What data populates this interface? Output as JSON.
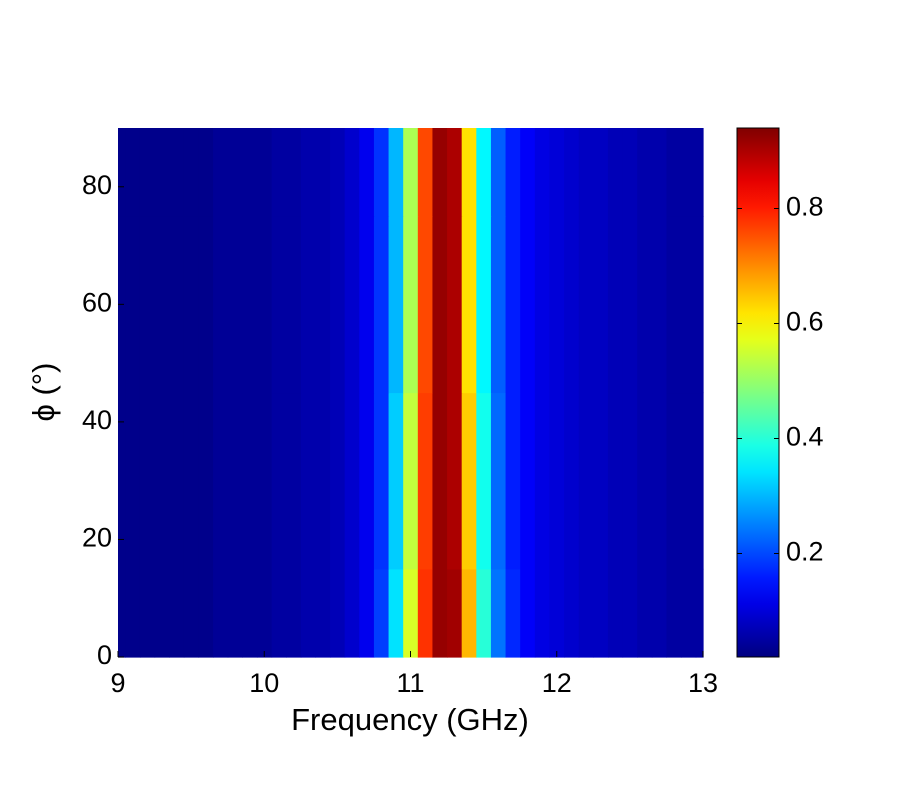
{
  "chart_data": {
    "type": "heatmap",
    "xlabel": "Frequency (GHz)",
    "ylabel": "ϕ (°)",
    "x": [
      9.0,
      9.1,
      9.2,
      9.3,
      9.4,
      9.5,
      9.6,
      9.7,
      9.8,
      9.9,
      10.0,
      10.1,
      10.2,
      10.3,
      10.4,
      10.5,
      10.6,
      10.7,
      10.8,
      10.9,
      11.0,
      11.1,
      11.2,
      11.3,
      11.4,
      11.5,
      11.6,
      11.7,
      11.8,
      11.9,
      12.0,
      12.1,
      12.2,
      12.3,
      12.4,
      12.5,
      12.6,
      12.7,
      12.8,
      12.9,
      13.0
    ],
    "y": [
      0,
      30,
      60,
      90
    ],
    "z": [
      [
        0.03,
        0.03,
        0.03,
        0.03,
        0.03,
        0.03,
        0.03,
        0.04,
        0.04,
        0.04,
        0.04,
        0.05,
        0.05,
        0.06,
        0.06,
        0.07,
        0.09,
        0.12,
        0.19,
        0.34,
        0.56,
        0.78,
        0.92,
        0.91,
        0.66,
        0.4,
        0.24,
        0.17,
        0.13,
        0.11,
        0.1,
        0.09,
        0.08,
        0.08,
        0.07,
        0.07,
        0.06,
        0.06,
        0.05,
        0.05,
        0.05
      ],
      [
        0.03,
        0.03,
        0.03,
        0.03,
        0.03,
        0.03,
        0.03,
        0.04,
        0.04,
        0.04,
        0.04,
        0.05,
        0.05,
        0.06,
        0.06,
        0.07,
        0.09,
        0.12,
        0.18,
        0.32,
        0.54,
        0.77,
        0.92,
        0.9,
        0.64,
        0.38,
        0.23,
        0.16,
        0.13,
        0.11,
        0.1,
        0.09,
        0.08,
        0.08,
        0.07,
        0.07,
        0.06,
        0.06,
        0.05,
        0.05,
        0.05
      ],
      [
        0.03,
        0.03,
        0.03,
        0.03,
        0.03,
        0.03,
        0.03,
        0.04,
        0.04,
        0.04,
        0.04,
        0.05,
        0.05,
        0.06,
        0.06,
        0.07,
        0.09,
        0.12,
        0.18,
        0.3,
        0.52,
        0.76,
        0.92,
        0.9,
        0.62,
        0.36,
        0.22,
        0.16,
        0.13,
        0.11,
        0.1,
        0.09,
        0.08,
        0.08,
        0.07,
        0.07,
        0.06,
        0.06,
        0.05,
        0.05,
        0.05
      ],
      [
        0.03,
        0.03,
        0.03,
        0.03,
        0.03,
        0.03,
        0.03,
        0.04,
        0.04,
        0.04,
        0.04,
        0.05,
        0.05,
        0.06,
        0.06,
        0.07,
        0.09,
        0.12,
        0.18,
        0.3,
        0.52,
        0.76,
        0.92,
        0.9,
        0.62,
        0.36,
        0.22,
        0.16,
        0.13,
        0.11,
        0.1,
        0.09,
        0.08,
        0.08,
        0.07,
        0.07,
        0.06,
        0.06,
        0.05,
        0.05,
        0.05
      ]
    ],
    "xlim": [
      9,
      13
    ],
    "xticks": [
      9,
      10,
      11,
      12,
      13
    ],
    "ylim": [
      0,
      90
    ],
    "yticks": [
      0,
      20,
      40,
      60,
      80
    ],
    "colormap": "jet",
    "clim": [
      0.02,
      0.94
    ],
    "cticks": [
      0.2,
      0.4,
      0.6,
      0.8
    ]
  }
}
